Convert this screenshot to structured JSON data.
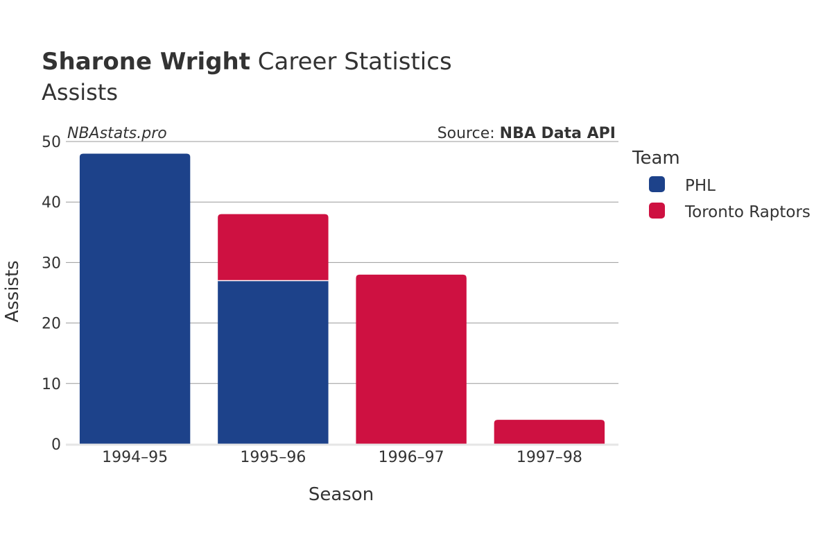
{
  "title": {
    "player": "Sharone Wright",
    "rest": " Career Statistics",
    "subtitle": "Assists"
  },
  "watermark": "NBAstats.pro",
  "source": {
    "prefix": "Source: ",
    "name": "NBA Data API"
  },
  "legend": {
    "title": "Team",
    "items": [
      {
        "label": "PHL",
        "color": "#1d428a"
      },
      {
        "label": "Toronto Raptors",
        "color": "#ce1141"
      }
    ]
  },
  "chart_data": {
    "type": "bar",
    "stacked": true,
    "categories": [
      "1994–95",
      "1995–96",
      "1996–97",
      "1997–98"
    ],
    "series": [
      {
        "name": "PHL",
        "color": "#1d428a",
        "values": [
          48,
          27,
          0,
          0
        ]
      },
      {
        "name": "Toronto Raptors",
        "color": "#ce1141",
        "values": [
          0,
          11,
          28,
          4
        ]
      }
    ],
    "xlabel": "Season",
    "ylabel": "Assists",
    "ylim": [
      0,
      50
    ],
    "yticks": [
      0,
      10,
      20,
      30,
      40,
      50
    ],
    "grid": true,
    "legend_position": "right"
  }
}
